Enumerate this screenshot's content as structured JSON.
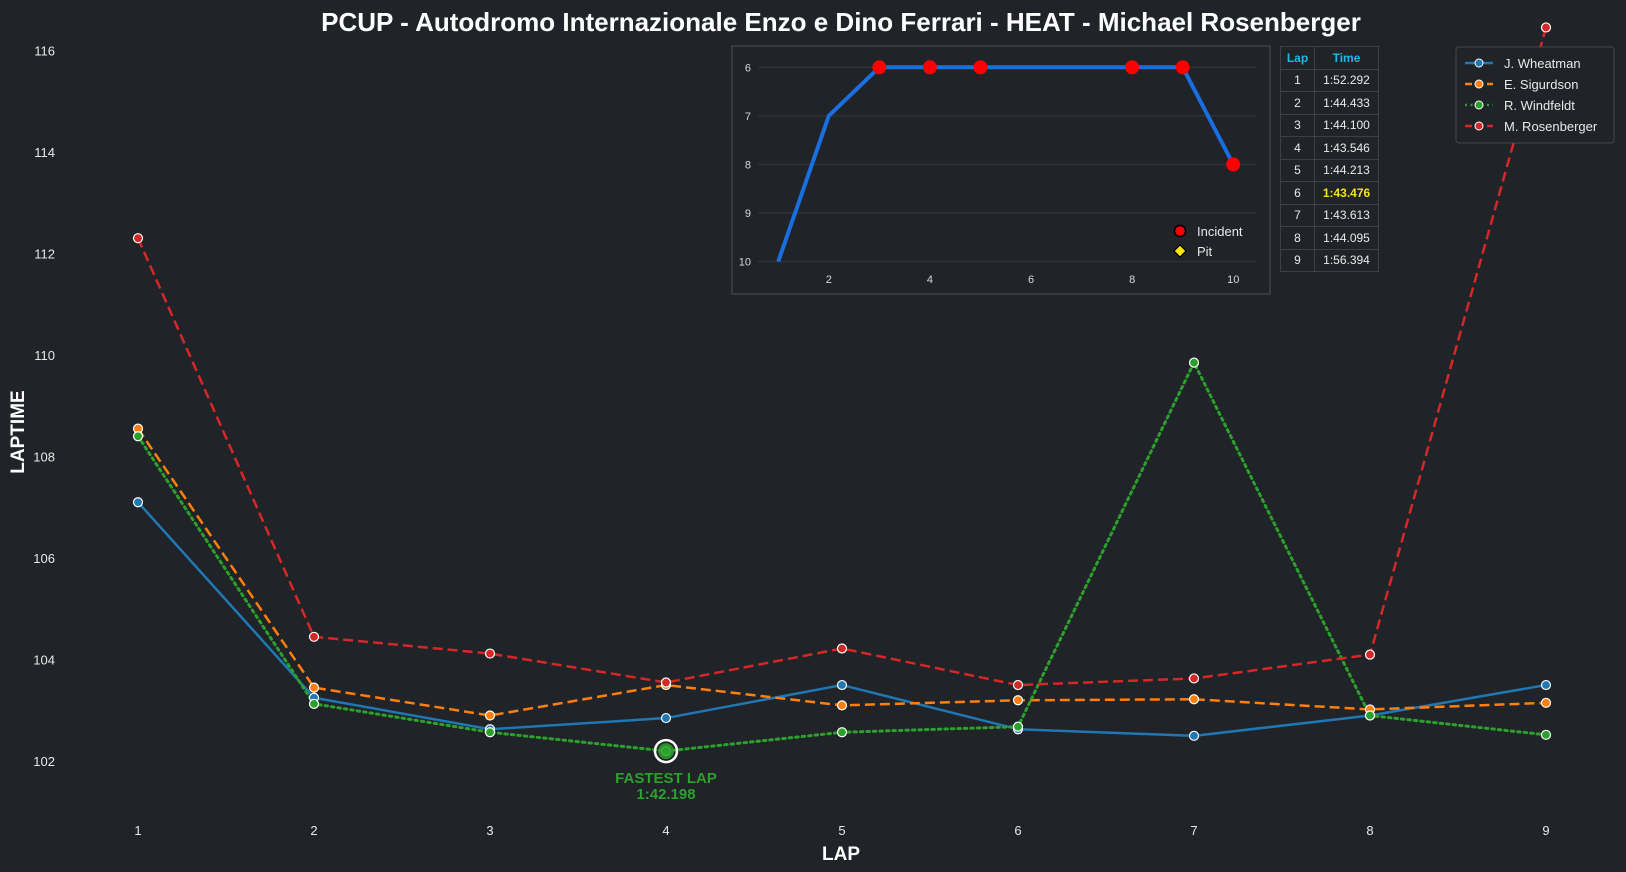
{
  "chart_data": [
    {
      "type": "line",
      "title": "PCUP - Autodromo Internazionale Enzo e Dino Ferrari - HEAT - Michael Rosenberger",
      "xlabel": "LAP",
      "ylabel": "LAPTIME",
      "x": [
        1,
        2,
        3,
        4,
        5,
        6,
        7,
        8,
        9
      ],
      "xticks": [
        "1",
        "2",
        "3",
        "4",
        "5",
        "6",
        "7",
        "8",
        "9"
      ],
      "yticks": [
        "102",
        "104",
        "106",
        "108",
        "110",
        "112",
        "114",
        "116"
      ],
      "ylim": [
        101.0,
        116.4
      ],
      "grid": false,
      "legend_position": "top-right",
      "series": [
        {
          "name": "J. Wheatman",
          "color": "#1f77b4",
          "style": "solid",
          "values": [
            107.1,
            103.25,
            102.63,
            102.85,
            103.5,
            102.63,
            102.5,
            102.9,
            103.5
          ]
        },
        {
          "name": "E. Sigurdson",
          "color": "#ff7f0e",
          "style": "dashed",
          "values": [
            108.55,
            103.45,
            102.9,
            103.5,
            103.1,
            103.2,
            103.22,
            103.02,
            103.15
          ]
        },
        {
          "name": "R. Windfeldt",
          "color": "#2ca02c",
          "style": "dotted",
          "values": [
            108.4,
            103.13,
            102.57,
            102.2,
            102.57,
            102.68,
            109.85,
            102.9,
            102.52
          ]
        },
        {
          "name": "M. Rosenberger",
          "color": "#d62728",
          "style": "dashed",
          "values": [
            112.3,
            104.45,
            104.12,
            103.55,
            104.22,
            103.5,
            103.63,
            104.1,
            116.45
          ]
        }
      ],
      "annotations": [
        {
          "text": "FASTEST LAP",
          "subtext": "1:42.198",
          "x": 4,
          "y": 102.2,
          "series": "R. Windfeldt",
          "color": "#2ca02c"
        }
      ]
    },
    {
      "type": "line",
      "title": "",
      "x": [
        1,
        2,
        3,
        4,
        5,
        6,
        7,
        8,
        9,
        10
      ],
      "values": [
        10,
        7,
        6,
        6,
        6,
        6,
        6,
        6,
        6,
        8
      ],
      "xticks": [
        "2",
        "4",
        "6",
        "8",
        "10"
      ],
      "yticks": [
        "6",
        "7",
        "8",
        "9",
        "10"
      ],
      "xlim": [
        0.6,
        10.45
      ],
      "ylim": [
        10.05,
        5.85
      ],
      "y_inverted": true,
      "grid": true,
      "line_color": "#1a6fe0",
      "incident_laps": [
        3,
        4,
        5,
        8,
        9,
        10
      ],
      "pit_laps": [],
      "incident_color": "#ff0000",
      "pit_color": "#ffe600",
      "legend": [
        "Incident",
        "Pit"
      ],
      "legend_position": "bottom-right"
    },
    {
      "type": "table",
      "columns": [
        "Lap",
        "Time"
      ],
      "rows": [
        [
          "1",
          "1:52.292"
        ],
        [
          "2",
          "1:44.433"
        ],
        [
          "3",
          "1:44.100"
        ],
        [
          "4",
          "1:43.546"
        ],
        [
          "5",
          "1:44.213"
        ],
        [
          "6",
          "1:43.476"
        ],
        [
          "7",
          "1:43.613"
        ],
        [
          "8",
          "1:44.095"
        ],
        [
          "9",
          "1:56.394"
        ]
      ],
      "highlight_row": 5,
      "header_color": "#1fb8e8",
      "highlight_color": "#f2e224"
    }
  ]
}
